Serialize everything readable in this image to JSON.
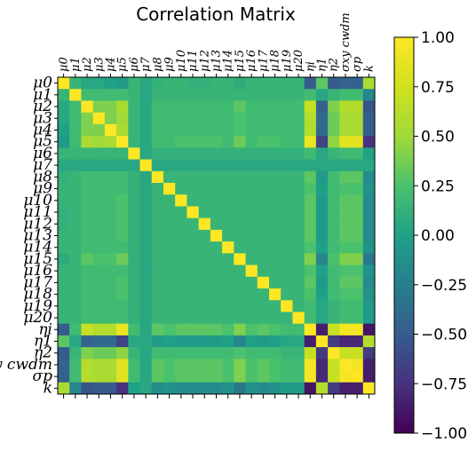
{
  "chart_data": {
    "type": "heatmap",
    "title": "Correlation Matrix",
    "labels": [
      "μ0",
      "μ1",
      "μ2",
      "μ3",
      "μ4",
      "μ5",
      "μ6",
      "μ7",
      "μ8",
      "μ9",
      "μ10",
      "μ11",
      "μ12",
      "μ13",
      "μ14",
      "μ15",
      "μ16",
      "μ17",
      "μ18",
      "μ19",
      "μ20",
      "ηi",
      "η1",
      "η2",
      "σxy cwdm",
      "σp",
      "k"
    ],
    "values": [
      [
        1.0,
        0.15,
        0.05,
        0.05,
        0.0,
        -0.05,
        0.15,
        0.05,
        0.12,
        0.15,
        0.15,
        0.12,
        0.12,
        0.15,
        0.15,
        0.08,
        0.15,
        0.15,
        0.15,
        0.15,
        0.15,
        -0.5,
        0.3,
        -0.5,
        -0.45,
        -0.45,
        0.55
      ],
      [
        0.15,
        1.0,
        0.2,
        0.2,
        0.2,
        0.2,
        0.15,
        0.05,
        0.15,
        0.15,
        0.15,
        0.15,
        0.15,
        0.15,
        0.15,
        0.15,
        0.15,
        0.15,
        0.15,
        0.15,
        0.15,
        0.2,
        0.05,
        0.15,
        0.2,
        0.2,
        -0.2
      ],
      [
        0.05,
        0.2,
        1.0,
        0.4,
        0.4,
        0.55,
        0.15,
        0.05,
        0.2,
        0.2,
        0.2,
        0.2,
        0.2,
        0.2,
        0.2,
        0.3,
        0.2,
        0.2,
        0.2,
        0.2,
        0.2,
        0.7,
        -0.45,
        0.4,
        0.6,
        0.6,
        -0.55
      ],
      [
        0.05,
        0.2,
        0.4,
        1.0,
        0.4,
        0.5,
        0.15,
        0.05,
        0.2,
        0.2,
        0.2,
        0.2,
        0.2,
        0.2,
        0.2,
        0.25,
        0.2,
        0.2,
        0.2,
        0.2,
        0.2,
        0.6,
        -0.4,
        0.35,
        0.55,
        0.55,
        -0.5
      ],
      [
        0.0,
        0.2,
        0.4,
        0.4,
        1.0,
        0.55,
        0.15,
        0.05,
        0.2,
        0.2,
        0.2,
        0.2,
        0.2,
        0.2,
        0.2,
        0.25,
        0.2,
        0.2,
        0.2,
        0.2,
        0.2,
        0.6,
        -0.4,
        0.35,
        0.55,
        0.55,
        -0.5
      ],
      [
        -0.05,
        0.2,
        0.55,
        0.5,
        0.55,
        1.0,
        0.15,
        0.05,
        0.2,
        0.2,
        0.25,
        0.25,
        0.25,
        0.25,
        0.2,
        0.35,
        0.2,
        0.25,
        0.25,
        0.2,
        0.2,
        0.9,
        -0.65,
        0.45,
        0.85,
        0.85,
        -0.75
      ],
      [
        0.15,
        0.15,
        0.15,
        0.15,
        0.15,
        0.15,
        1.0,
        0.05,
        0.12,
        0.12,
        0.12,
        0.12,
        0.12,
        0.12,
        0.12,
        0.12,
        0.12,
        0.12,
        0.12,
        0.12,
        0.12,
        0.2,
        0.05,
        0.15,
        0.2,
        0.2,
        0.0
      ],
      [
        0.05,
        0.05,
        0.05,
        0.05,
        0.05,
        0.05,
        0.05,
        1.0,
        0.05,
        0.05,
        0.05,
        0.05,
        0.05,
        0.05,
        0.05,
        0.05,
        0.05,
        0.05,
        0.05,
        0.05,
        0.05,
        0.05,
        0.05,
        0.05,
        0.05,
        0.05,
        0.05
      ],
      [
        0.12,
        0.15,
        0.2,
        0.2,
        0.2,
        0.2,
        0.12,
        0.05,
        1.0,
        0.15,
        0.15,
        0.15,
        0.15,
        0.15,
        0.15,
        0.15,
        0.15,
        0.15,
        0.15,
        0.15,
        0.15,
        0.3,
        -0.05,
        0.2,
        0.3,
        0.3,
        -0.15
      ],
      [
        0.15,
        0.15,
        0.2,
        0.2,
        0.2,
        0.2,
        0.12,
        0.05,
        0.15,
        1.0,
        0.15,
        0.15,
        0.15,
        0.15,
        0.15,
        0.15,
        0.15,
        0.15,
        0.15,
        0.15,
        0.15,
        0.25,
        0.0,
        0.2,
        0.25,
        0.25,
        -0.1
      ],
      [
        0.15,
        0.15,
        0.2,
        0.2,
        0.2,
        0.25,
        0.12,
        0.05,
        0.15,
        0.15,
        1.0,
        0.15,
        0.15,
        0.15,
        0.15,
        0.15,
        0.15,
        0.15,
        0.15,
        0.15,
        0.15,
        0.3,
        -0.05,
        0.2,
        0.3,
        0.3,
        -0.15
      ],
      [
        0.12,
        0.15,
        0.2,
        0.2,
        0.2,
        0.25,
        0.12,
        0.05,
        0.15,
        0.15,
        0.15,
        1.0,
        0.15,
        0.15,
        0.15,
        0.15,
        0.15,
        0.15,
        0.15,
        0.15,
        0.15,
        0.3,
        -0.05,
        0.2,
        0.3,
        0.3,
        -0.15
      ],
      [
        0.12,
        0.15,
        0.2,
        0.2,
        0.2,
        0.25,
        0.12,
        0.05,
        0.15,
        0.15,
        0.15,
        0.15,
        1.0,
        0.15,
        0.15,
        0.15,
        0.15,
        0.15,
        0.15,
        0.15,
        0.15,
        0.3,
        -0.05,
        0.2,
        0.3,
        0.3,
        -0.15
      ],
      [
        0.15,
        0.15,
        0.2,
        0.2,
        0.2,
        0.25,
        0.12,
        0.05,
        0.15,
        0.15,
        0.15,
        0.15,
        0.15,
        1.0,
        0.15,
        0.15,
        0.15,
        0.15,
        0.15,
        0.15,
        0.15,
        0.3,
        -0.05,
        0.2,
        0.3,
        0.3,
        -0.15
      ],
      [
        0.15,
        0.15,
        0.2,
        0.2,
        0.2,
        0.2,
        0.12,
        0.05,
        0.15,
        0.15,
        0.15,
        0.15,
        0.15,
        0.15,
        1.0,
        0.15,
        0.15,
        0.15,
        0.15,
        0.15,
        0.15,
        0.25,
        0.0,
        0.2,
        0.25,
        0.25,
        -0.1
      ],
      [
        0.08,
        0.15,
        0.3,
        0.25,
        0.25,
        0.35,
        0.12,
        0.05,
        0.15,
        0.15,
        0.15,
        0.15,
        0.15,
        0.15,
        0.15,
        1.0,
        0.15,
        0.15,
        0.15,
        0.15,
        0.15,
        0.4,
        -0.2,
        0.25,
        0.4,
        0.4,
        -0.3
      ],
      [
        0.15,
        0.15,
        0.2,
        0.2,
        0.2,
        0.2,
        0.12,
        0.05,
        0.15,
        0.15,
        0.15,
        0.15,
        0.15,
        0.15,
        0.15,
        0.15,
        1.0,
        0.15,
        0.15,
        0.15,
        0.15,
        0.25,
        0.0,
        0.2,
        0.25,
        0.25,
        -0.1
      ],
      [
        0.15,
        0.15,
        0.2,
        0.2,
        0.2,
        0.25,
        0.12,
        0.05,
        0.15,
        0.15,
        0.15,
        0.15,
        0.15,
        0.15,
        0.15,
        0.15,
        0.15,
        1.0,
        0.15,
        0.15,
        0.15,
        0.3,
        -0.05,
        0.2,
        0.3,
        0.3,
        -0.15
      ],
      [
        0.15,
        0.15,
        0.2,
        0.2,
        0.2,
        0.25,
        0.12,
        0.05,
        0.15,
        0.15,
        0.15,
        0.15,
        0.15,
        0.15,
        0.15,
        0.15,
        0.15,
        0.15,
        1.0,
        0.15,
        0.15,
        0.25,
        0.0,
        0.2,
        0.25,
        0.25,
        -0.1
      ],
      [
        0.15,
        0.15,
        0.2,
        0.2,
        0.2,
        0.2,
        0.12,
        0.05,
        0.15,
        0.15,
        0.15,
        0.15,
        0.15,
        0.15,
        0.15,
        0.15,
        0.15,
        0.15,
        0.15,
        1.0,
        0.15,
        0.2,
        0.05,
        0.15,
        0.2,
        0.2,
        -0.05
      ],
      [
        0.15,
        0.15,
        0.2,
        0.2,
        0.2,
        0.2,
        0.12,
        0.05,
        0.15,
        0.15,
        0.15,
        0.15,
        0.15,
        0.15,
        0.15,
        0.15,
        0.15,
        0.15,
        0.15,
        0.15,
        1.0,
        0.2,
        0.05,
        0.15,
        0.2,
        0.2,
        -0.05
      ],
      [
        -0.5,
        0.2,
        0.7,
        0.6,
        0.6,
        0.9,
        0.2,
        0.05,
        0.3,
        0.25,
        0.3,
        0.3,
        0.3,
        0.3,
        0.25,
        0.4,
        0.25,
        0.3,
        0.25,
        0.2,
        0.2,
        1.0,
        -0.85,
        0.7,
        0.95,
        0.95,
        -0.9
      ],
      [
        0.3,
        0.05,
        -0.45,
        -0.4,
        -0.4,
        -0.65,
        0.05,
        0.05,
        -0.05,
        0.0,
        -0.05,
        -0.05,
        -0.05,
        -0.05,
        0.0,
        -0.2,
        0.0,
        -0.05,
        0.0,
        0.05,
        0.05,
        -0.85,
        1.0,
        -0.7,
        -0.8,
        -0.8,
        0.6
      ],
      [
        -0.5,
        0.15,
        0.4,
        0.35,
        0.35,
        0.45,
        0.15,
        0.05,
        0.2,
        0.2,
        0.2,
        0.2,
        0.2,
        0.2,
        0.2,
        0.25,
        0.2,
        0.2,
        0.2,
        0.15,
        0.15,
        0.7,
        -0.7,
        1.0,
        0.7,
        0.7,
        -0.7
      ],
      [
        -0.45,
        0.2,
        0.6,
        0.55,
        0.55,
        0.85,
        0.2,
        0.05,
        0.3,
        0.25,
        0.3,
        0.3,
        0.3,
        0.3,
        0.25,
        0.4,
        0.25,
        0.3,
        0.25,
        0.2,
        0.2,
        0.95,
        -0.8,
        0.7,
        1.0,
        0.95,
        -0.85
      ],
      [
        -0.45,
        0.2,
        0.6,
        0.55,
        0.55,
        0.85,
        0.2,
        0.05,
        0.3,
        0.25,
        0.3,
        0.3,
        0.3,
        0.3,
        0.25,
        0.4,
        0.25,
        0.3,
        0.25,
        0.2,
        0.2,
        0.95,
        -0.8,
        0.7,
        0.95,
        1.0,
        -0.85
      ],
      [
        0.55,
        -0.2,
        -0.55,
        -0.5,
        -0.5,
        -0.75,
        0.0,
        0.05,
        -0.15,
        -0.1,
        -0.15,
        -0.15,
        -0.15,
        -0.15,
        -0.1,
        -0.3,
        -0.1,
        -0.15,
        -0.1,
        -0.05,
        -0.05,
        -0.9,
        0.6,
        -0.7,
        -0.85,
        -0.85,
        1.0
      ]
    ],
    "colorbar": {
      "colormap": "viridis",
      "vmin": -1.0,
      "vmax": 1.0,
      "ticks": [
        "1.00",
        "0.75",
        "0.50",
        "0.25",
        "0.00",
        "−0.25",
        "−0.50",
        "−0.75",
        "−1.00"
      ]
    }
  }
}
